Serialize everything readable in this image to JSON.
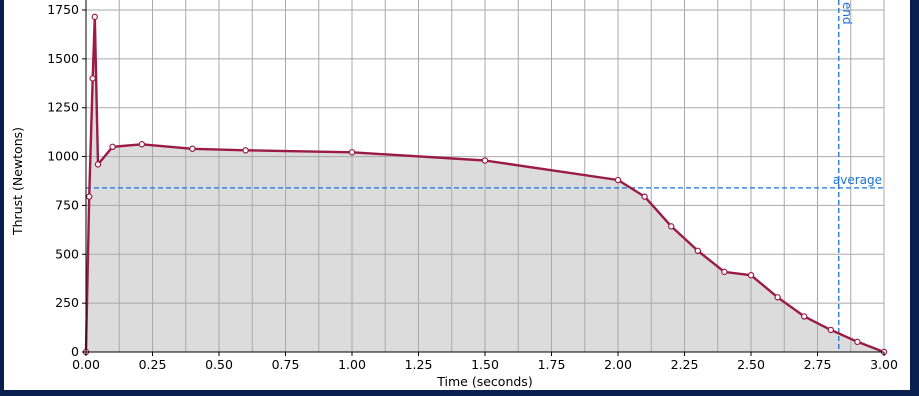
{
  "colors": {
    "frame_border": "#0b1f4e",
    "plot_fill": "#dcdcdc",
    "curve": "#9b1b45",
    "grid": "#a9a9a9",
    "reference_lines": "#1a73d9"
  },
  "chart_data": {
    "type": "area",
    "title": "",
    "xlabel": "Time (seconds)",
    "ylabel": "Thrust (Newtons)",
    "xlim": [
      0,
      3.0
    ],
    "ylim": [
      0,
      1750
    ],
    "grid": true,
    "legend": "none",
    "x_ticks": [
      "0.00",
      "0.25",
      "0.50",
      "0.75",
      "1.00",
      "1.25",
      "1.50",
      "1.75",
      "2.00",
      "2.25",
      "2.50",
      "2.75",
      "3.00"
    ],
    "y_ticks": [
      "0",
      "250",
      "500",
      "750",
      "1000",
      "1250",
      "1500",
      "1750"
    ],
    "x_minor_step": 0.125,
    "series": [
      {
        "x": [
          0.0,
          0.012,
          0.025,
          0.033,
          0.045,
          0.1,
          0.21,
          0.4,
          0.6,
          1.0,
          1.5,
          2.0,
          2.1,
          2.2,
          2.3,
          2.4,
          2.5,
          2.6,
          2.7,
          2.8,
          2.9,
          3.0
        ],
        "y": [
          0,
          795,
          1400,
          1715,
          960,
          1050,
          1063,
          1040,
          1032,
          1022,
          980,
          880,
          795,
          643,
          518,
          410,
          393,
          280,
          182,
          113,
          52,
          0
        ]
      }
    ],
    "reference_lines": [
      {
        "axis": "y",
        "value": 840,
        "label": "average"
      },
      {
        "axis": "x",
        "value": 2.83,
        "label": "end"
      }
    ]
  }
}
